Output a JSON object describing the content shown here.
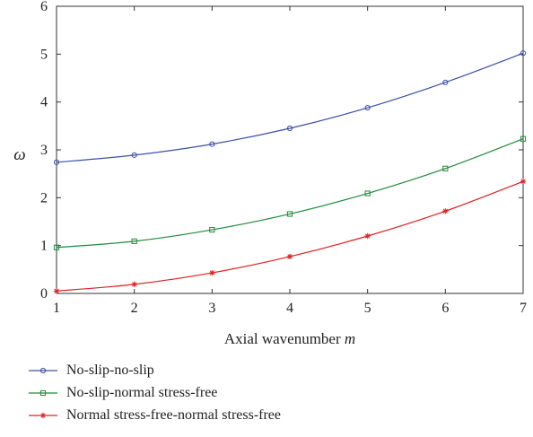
{
  "chart_data": {
    "type": "line",
    "title": "",
    "xlabel_prefix": "Axial wavenumber ",
    "xlabel_var": "m",
    "ylabel": "ω",
    "x": [
      1,
      2,
      3,
      4,
      5,
      6,
      7
    ],
    "xlim": [
      1,
      7
    ],
    "ylim": [
      0,
      6
    ],
    "xticks": [
      "1",
      "2",
      "3",
      "4",
      "5",
      "6",
      "7"
    ],
    "yticks": [
      "0",
      "1",
      "2",
      "3",
      "4",
      "5",
      "6"
    ],
    "grid": false,
    "legend_position": "below",
    "series": [
      {
        "name": "No-slip-no-slip",
        "color": "#3a4fa8",
        "marker": "circle",
        "values": [
          2.74,
          2.89,
          3.12,
          3.45,
          3.88,
          4.41,
          5.02
        ]
      },
      {
        "name": "No-slip-normal stress-free",
        "color": "#1f8a3c",
        "marker": "square",
        "values": [
          0.96,
          1.09,
          1.33,
          1.66,
          2.09,
          2.61,
          3.23
        ]
      },
      {
        "name": "Normal stress-free-normal stress-free",
        "color": "#e02020",
        "marker": "star",
        "values": [
          0.05,
          0.19,
          0.43,
          0.77,
          1.2,
          1.72,
          2.34
        ]
      }
    ]
  }
}
